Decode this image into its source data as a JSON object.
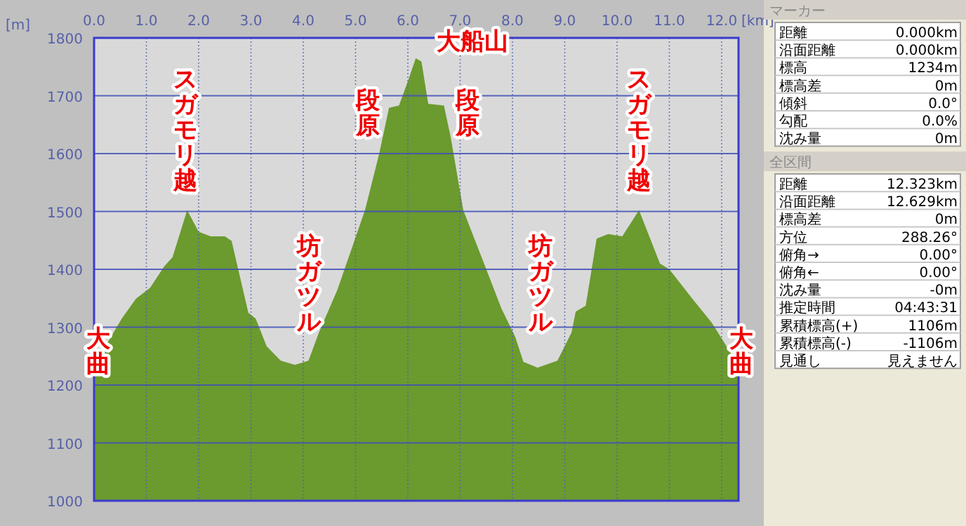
{
  "chart_data": [
    {
      "type": "area",
      "title": "大船山",
      "xlabel": "[km]",
      "ylabel": "[m]",
      "grid": true,
      "x": [
        0,
        0.53,
        0.8,
        1.07,
        1.34,
        1.5,
        1.78,
        2.0,
        2.23,
        2.5,
        2.63,
        2.95,
        3.09,
        3.3,
        3.57,
        3.84,
        4.1,
        4.3,
        4.65,
        5.18,
        5.45,
        5.64,
        5.83,
        6.02,
        6.15,
        6.26,
        6.39,
        6.69,
        6.82,
        7.06,
        7.41,
        7.79,
        8.05,
        8.21,
        8.48,
        8.86,
        9.13,
        9.21,
        9.4,
        9.61,
        9.83,
        10.1,
        10.42,
        10.82,
        11.0,
        11.44,
        11.81,
        12.323
      ],
      "series": [
        {
          "color": "#6b9a2e",
          "values": [
            1234,
            1315,
            1349,
            1368,
            1405,
            1421,
            1502,
            1465,
            1457,
            1457,
            1449,
            1325,
            1315,
            1267,
            1242,
            1235,
            1242,
            1291,
            1364,
            1502,
            1599,
            1679,
            1683,
            1730,
            1765,
            1759,
            1686,
            1683,
            1628,
            1502,
            1421,
            1332,
            1284,
            1240,
            1230,
            1242,
            1291,
            1327,
            1337,
            1453,
            1461,
            1457,
            1502,
            1410,
            1400,
            1349,
            1308,
            1234
          ]
        }
      ],
      "xlim": [
        0,
        12.323
      ],
      "xticks": [
        {
          "value": 0,
          "label": "0.0"
        },
        {
          "value": 1,
          "label": "1.0"
        },
        {
          "value": 2,
          "label": "2.0"
        },
        {
          "value": 3,
          "label": "3.0"
        },
        {
          "value": 4,
          "label": "4.0"
        },
        {
          "value": 5,
          "label": "5.0"
        },
        {
          "value": 6,
          "label": "6.0"
        },
        {
          "value": 7,
          "label": "7.0"
        },
        {
          "value": 8,
          "label": "8.0"
        },
        {
          "value": 9,
          "label": "9.0"
        },
        {
          "value": 10,
          "label": "10.0"
        },
        {
          "value": 11,
          "label": "11.0"
        },
        {
          "value": 12,
          "label": "12.0"
        }
      ],
      "ylim": [
        1000,
        1800
      ],
      "yticks": [
        1000,
        1100,
        1200,
        1300,
        1400,
        1500,
        1600,
        1700,
        1800
      ],
      "annotations": [
        "スガモリ越",
        "段原",
        "段原",
        "スガモリ越",
        "坊ガツル",
        "坊ガツル",
        "大曲",
        "大曲"
      ]
    },
    {
      "type": "other",
      "title": "マーカー",
      "annotations": [
        "距離",
        "0.000km",
        "沿面距離",
        "0.000km",
        "標高",
        "1234m",
        "標高差",
        "0m",
        "傾斜",
        "0.0°",
        "勾配",
        "0.0%",
        "沈み量",
        "0m"
      ]
    },
    {
      "type": "other",
      "title": "全区間",
      "annotations": [
        "距離",
        "12.323km",
        "沿面距離",
        "12.629km",
        "標高差",
        "0m",
        "方位",
        "288.26°",
        "俯角→",
        "0.00°",
        "俯角←",
        "0.00°",
        "沈み量",
        "-0m",
        "推定時間",
        "04:43:31",
        "累積標高(+)",
        "1106m",
        "累積標高(-)",
        "-1106m",
        "見通し",
        "見えません"
      ]
    }
  ]
}
